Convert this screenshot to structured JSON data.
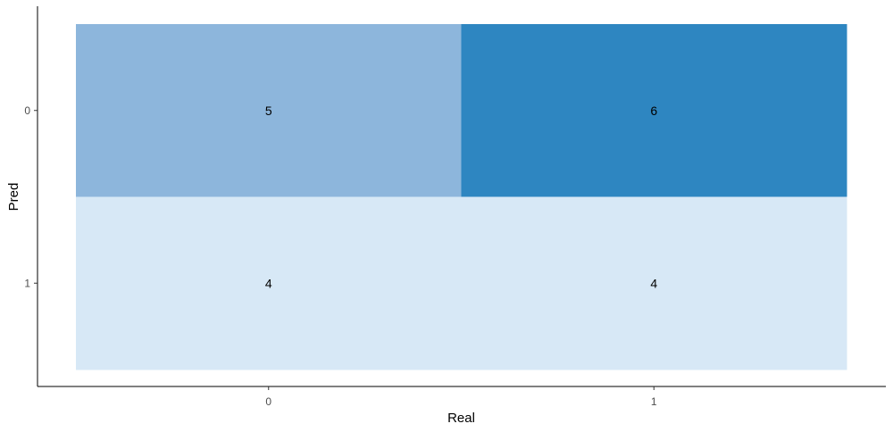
{
  "chart_data": {
    "type": "heatmap",
    "xlabel": "Real",
    "ylabel": "Pred",
    "x_categories": [
      "0",
      "1"
    ],
    "y_categories": [
      "0",
      "1"
    ],
    "cells": [
      {
        "real": "0",
        "pred": "0",
        "value": 5
      },
      {
        "real": "1",
        "pred": "0",
        "value": 6
      },
      {
        "real": "0",
        "pred": "1",
        "value": 4
      },
      {
        "real": "1",
        "pred": "1",
        "value": 4
      }
    ],
    "color_scale": {
      "low": "#d7e8f6",
      "mid": "#8db6dc",
      "high": "#2e86c1"
    },
    "grid": false,
    "legend": "none"
  }
}
